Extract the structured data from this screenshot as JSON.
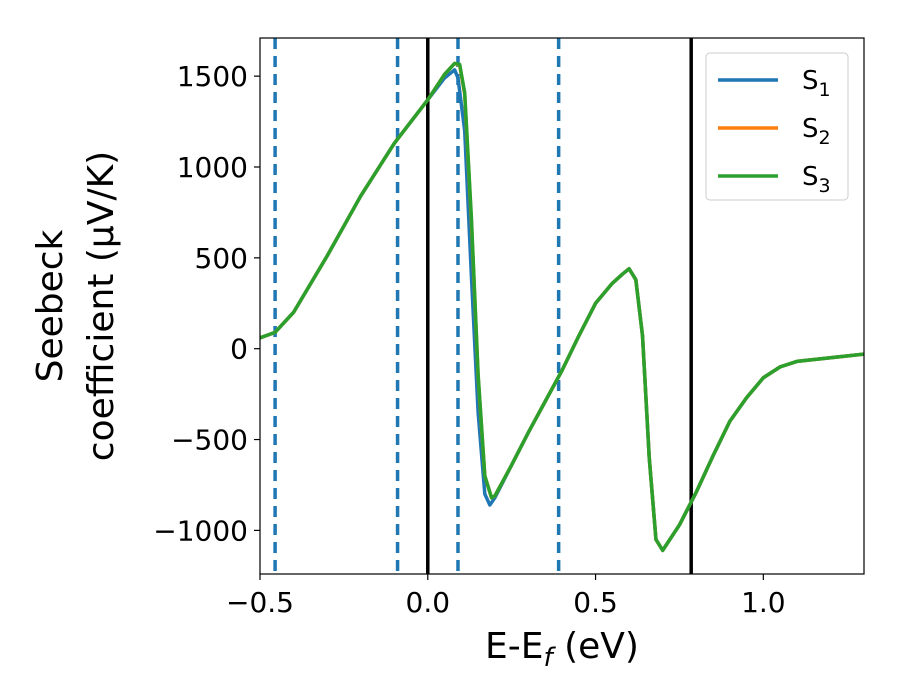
{
  "chart_data": {
    "type": "line",
    "xlabel_main": "E-E",
    "xlabel_sub": "f",
    "xlabel_unit": " (eV)",
    "ylabel_line1": "Seebeck",
    "ylabel_line2": "coefficient  (μV/K)",
    "xlim": [
      -0.5,
      1.3
    ],
    "ylim": [
      -1240,
      1710
    ],
    "x_ticks": [
      -0.5,
      0.0,
      0.5,
      1.0
    ],
    "x_tick_labels": [
      "−0.5",
      "0.0",
      "0.5",
      "1.0"
    ],
    "y_ticks": [
      -1000,
      -500,
      0,
      500,
      1000,
      1500
    ],
    "y_tick_labels": [
      "−1000",
      "−500",
      "0",
      "500",
      "1000",
      "1500"
    ],
    "grid": false,
    "legend_position": "top-right",
    "vlines_dashed": [
      -0.455,
      -0.09,
      0.09,
      0.39
    ],
    "vlines_solid": [
      0.0,
      0.785
    ],
    "dashed_color": "#1f77b4",
    "solid_color": "#000000",
    "series": [
      {
        "name_main": "S",
        "name_sub": "1",
        "color": "#1f77b4",
        "x": [
          -0.5,
          -0.455,
          -0.4,
          -0.3,
          -0.2,
          -0.1,
          0.0,
          0.05,
          0.08,
          0.09,
          0.11,
          0.13,
          0.15,
          0.17,
          0.185,
          0.2,
          0.25,
          0.3,
          0.35,
          0.4,
          0.45,
          0.5,
          0.55,
          0.58,
          0.6,
          0.62,
          0.64,
          0.66,
          0.68,
          0.7,
          0.75,
          0.8,
          0.85,
          0.9,
          0.95,
          1.0,
          1.05,
          1.1,
          1.2,
          1.3
        ],
        "y": [
          60,
          90,
          200,
          510,
          840,
          1130,
          1370,
          1490,
          1535,
          1490,
          1200,
          400,
          -350,
          -800,
          -860,
          -820,
          -640,
          -460,
          -290,
          -120,
          70,
          250,
          360,
          410,
          440,
          380,
          70,
          -600,
          -1050,
          -1110,
          -970,
          -790,
          -590,
          -400,
          -270,
          -160,
          -100,
          -70,
          -50,
          -30
        ]
      },
      {
        "name_main": "S",
        "name_sub": "2",
        "color": "#ff7f0e",
        "x": [
          -0.5,
          -0.455,
          -0.4,
          -0.3,
          -0.2,
          -0.1,
          0.0,
          0.05,
          0.08,
          0.095,
          0.11,
          0.13,
          0.15,
          0.17,
          0.19,
          0.2,
          0.25,
          0.3,
          0.35,
          0.4,
          0.45,
          0.5,
          0.55,
          0.58,
          0.6,
          0.62,
          0.64,
          0.66,
          0.68,
          0.7,
          0.75,
          0.8,
          0.85,
          0.9,
          0.95,
          1.0,
          1.05,
          1.1,
          1.2,
          1.3
        ],
        "y": [
          60,
          90,
          200,
          510,
          840,
          1130,
          1370,
          1510,
          1570,
          1560,
          1400,
          700,
          -150,
          -700,
          -820,
          -810,
          -640,
          -460,
          -290,
          -120,
          70,
          250,
          360,
          410,
          440,
          380,
          70,
          -600,
          -1050,
          -1110,
          -970,
          -790,
          -590,
          -400,
          -270,
          -160,
          -100,
          -70,
          -50,
          -30
        ]
      },
      {
        "name_main": "S",
        "name_sub": "3",
        "color": "#2ca02c",
        "x": [
          -0.5,
          -0.455,
          -0.4,
          -0.3,
          -0.2,
          -0.1,
          0.0,
          0.05,
          0.08,
          0.095,
          0.11,
          0.13,
          0.15,
          0.17,
          0.19,
          0.2,
          0.25,
          0.3,
          0.35,
          0.4,
          0.45,
          0.5,
          0.55,
          0.58,
          0.6,
          0.62,
          0.64,
          0.66,
          0.68,
          0.7,
          0.75,
          0.8,
          0.85,
          0.9,
          0.95,
          1.0,
          1.05,
          1.1,
          1.2,
          1.3
        ],
        "y": [
          60,
          90,
          200,
          510,
          840,
          1130,
          1370,
          1510,
          1570,
          1565,
          1410,
          720,
          -140,
          -700,
          -820,
          -810,
          -640,
          -460,
          -290,
          -120,
          70,
          250,
          360,
          410,
          440,
          380,
          70,
          -600,
          -1050,
          -1110,
          -970,
          -790,
          -590,
          -400,
          -270,
          -160,
          -100,
          -70,
          -50,
          -30
        ]
      }
    ]
  }
}
